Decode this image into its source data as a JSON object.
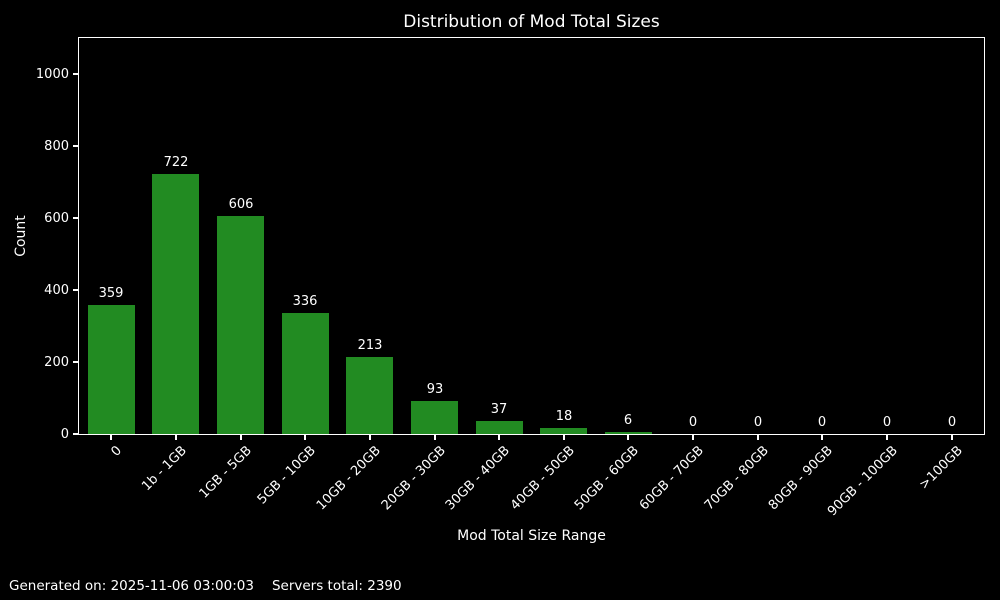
{
  "title": "Distribution of Mod Total Sizes",
  "footer": {
    "generated": "Generated on: 2025-11-06 03:00:03",
    "servers_total": "Servers total: 2390"
  },
  "chart_data": {
    "type": "bar",
    "title": "Distribution of Mod Total Sizes",
    "xlabel": "Mod Total Size Range",
    "ylabel": "Count",
    "categories": [
      "0",
      "1b - 1GB",
      "1GB - 5GB",
      "5GB - 10GB",
      "10GB - 20GB",
      "20GB - 30GB",
      "30GB - 40GB",
      "40GB - 50GB",
      "50GB - 60GB",
      "60GB - 70GB",
      "70GB - 80GB",
      "80GB - 90GB",
      "90GB - 100GB",
      ">100GB"
    ],
    "values": [
      359,
      722,
      606,
      336,
      213,
      93,
      37,
      18,
      6,
      0,
      0,
      0,
      0,
      0
    ],
    "ylim": [
      0,
      1100
    ],
    "yticks": [
      0,
      200,
      400,
      600,
      800,
      1000
    ],
    "grid": false,
    "legend_position": "none",
    "bar_color": "#228B22",
    "background_color": "#000000",
    "text_color": "#ffffff",
    "xtick_rotation_deg": 45
  }
}
